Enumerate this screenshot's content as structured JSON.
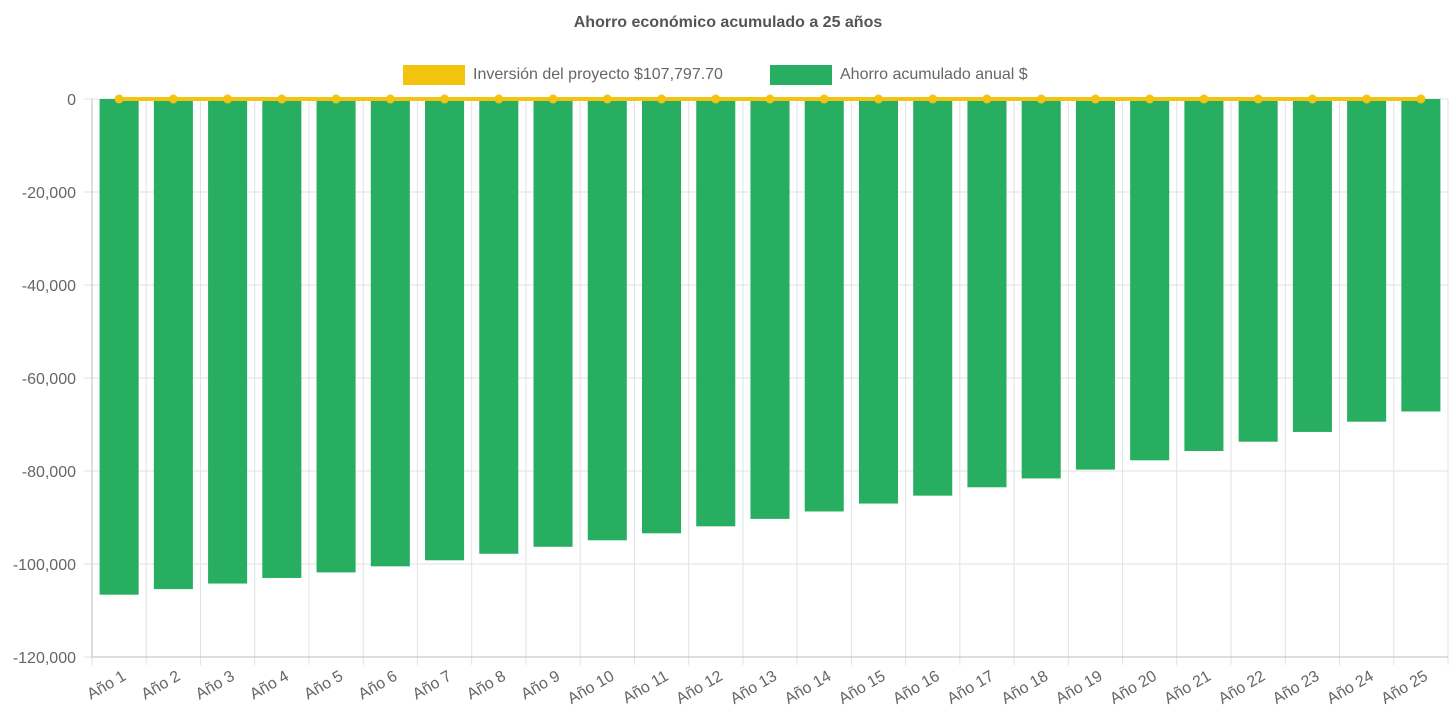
{
  "chart_data": {
    "type": "bar",
    "title": "Ahorro económico acumulado a 25 años",
    "categories": [
      "Año 1",
      "Año 2",
      "Año 3",
      "Año 4",
      "Año 5",
      "Año 6",
      "Año 7",
      "Año 8",
      "Año 9",
      "Año 10",
      "Año 11",
      "Año 12",
      "Año 13",
      "Año 14",
      "Año 15",
      "Año 16",
      "Año 17",
      "Año 18",
      "Año 19",
      "Año 20",
      "Año 21",
      "Año 22",
      "Año 23",
      "Año 24",
      "Año 25"
    ],
    "series": [
      {
        "name": "Inversión del proyecto $107,797.70",
        "kind": "line",
        "color": "#f2c40f",
        "values": [
          0,
          0,
          0,
          0,
          0,
          0,
          0,
          0,
          0,
          0,
          0,
          0,
          0,
          0,
          0,
          0,
          0,
          0,
          0,
          0,
          0,
          0,
          0,
          0,
          0
        ]
      },
      {
        "name": "Ahorro acumulado anual $",
        "kind": "bar",
        "color": "#27ae60",
        "values": [
          -106600,
          -105400,
          -104200,
          -103000,
          -101800,
          -100500,
          -99200,
          -97800,
          -96300,
          -94900,
          -93400,
          -91900,
          -90300,
          -88700,
          -87000,
          -85300,
          -83500,
          -81600,
          -79700,
          -77700,
          -75700,
          -73700,
          -71600,
          -69400,
          -67200
        ]
      }
    ],
    "ylim": [
      -120000,
      0
    ],
    "yticks": [
      0,
      -20000,
      -40000,
      -60000,
      -80000,
      -100000,
      -120000
    ],
    "ytick_labels": [
      "0",
      "-20,000",
      "-40,000",
      "-60,000",
      "-80,000",
      "-100,000",
      "-120,000"
    ],
    "xlabel": "",
    "ylabel": "",
    "grid": true,
    "legend_position": "top-center"
  }
}
